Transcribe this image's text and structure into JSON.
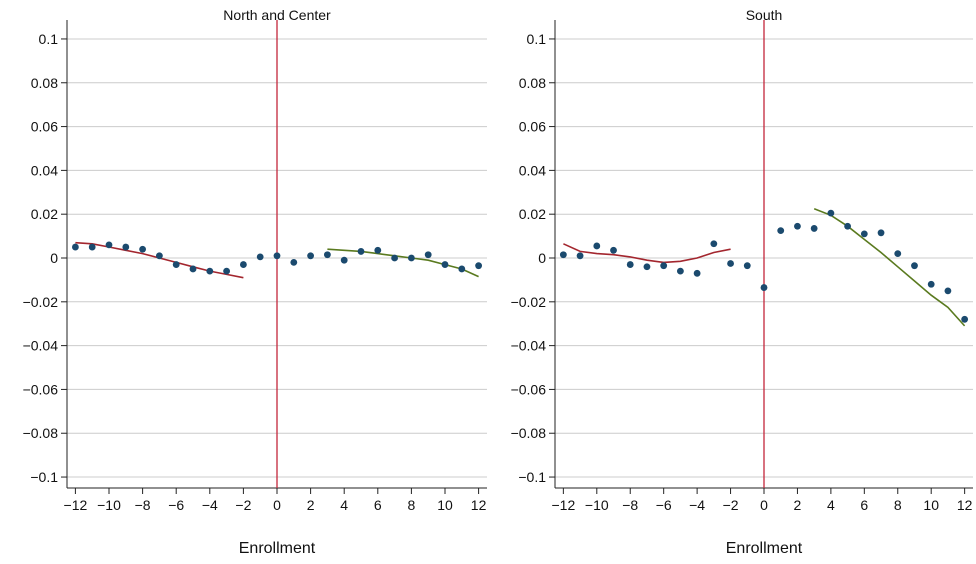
{
  "chart_data": [
    {
      "type": "scatter",
      "title": "North and Center",
      "xlabel": "Enrollment",
      "ylabel": "",
      "xlim": [
        -12.5,
        12.5
      ],
      "ylim": [
        -0.105,
        0.105
      ],
      "xticks": [
        -12,
        -10,
        -8,
        -6,
        -4,
        -2,
        0,
        2,
        4,
        6,
        8,
        10,
        12
      ],
      "xtick_labels": [
        "−12",
        "−10",
        "−8",
        "−6",
        "−4",
        "−2",
        "0",
        "2",
        "4",
        "6",
        "8",
        "10",
        "12"
      ],
      "yticks": [
        -0.1,
        -0.08,
        -0.06,
        -0.04,
        -0.02,
        0,
        0.02,
        0.04,
        0.06,
        0.08,
        0.1
      ],
      "ytick_labels": [
        "−0.1",
        "−0.08",
        "−0.06",
        "−0.04",
        "−0.02",
        "0",
        "0.02",
        "0.04",
        "0.06",
        "0.08",
        "0.1"
      ],
      "grid": "horizontal",
      "cutoff": 0,
      "points": {
        "x": [
          -12,
          -11,
          -10,
          -9,
          -8,
          -7,
          -6,
          -5,
          -4,
          -3,
          -2,
          -1,
          0,
          1,
          2,
          3,
          4,
          5,
          6,
          7,
          8,
          9,
          10,
          11,
          12
        ],
        "y": [
          0.005,
          0.005,
          0.006,
          0.005,
          0.004,
          0.001,
          -0.003,
          -0.005,
          -0.006,
          -0.006,
          -0.003,
          0.0005,
          0.001,
          -0.002,
          0.001,
          0.0015,
          -0.001,
          0.003,
          0.0035,
          0.0,
          0.0,
          0.0015,
          -0.003,
          -0.005,
          -0.0035
        ]
      },
      "fit_left": {
        "x": [
          -12,
          -11,
          -10,
          -9,
          -8,
          -7,
          -6,
          -5,
          -4,
          -3,
          -2
        ],
        "y": [
          0.007,
          0.0065,
          0.005,
          0.0035,
          0.002,
          0.0,
          -0.002,
          -0.004,
          -0.006,
          -0.0075,
          -0.009
        ]
      },
      "fit_right": {
        "x": [
          3,
          4,
          5,
          6,
          7,
          8,
          9,
          10,
          11,
          12
        ],
        "y": [
          0.004,
          0.0035,
          0.003,
          0.002,
          0.001,
          0.0,
          -0.001,
          -0.003,
          -0.005,
          -0.0085
        ]
      }
    },
    {
      "type": "scatter",
      "title": "South",
      "xlabel": "Enrollment",
      "ylabel": "",
      "xlim": [
        -12.5,
        12.5
      ],
      "ylim": [
        -0.105,
        0.105
      ],
      "xticks": [
        -12,
        -10,
        -8,
        -6,
        -4,
        -2,
        0,
        2,
        4,
        6,
        8,
        10,
        12
      ],
      "xtick_labels": [
        "−12",
        "−10",
        "−8",
        "−6",
        "−4",
        "−2",
        "0",
        "2",
        "4",
        "6",
        "8",
        "10",
        "12"
      ],
      "yticks": [
        -0.1,
        -0.08,
        -0.06,
        -0.04,
        -0.02,
        0,
        0.02,
        0.04,
        0.06,
        0.08,
        0.1
      ],
      "ytick_labels": [
        "−0.1",
        "−0.08",
        "−0.06",
        "−0.04",
        "−0.02",
        "0",
        "0.02",
        "0.04",
        "0.06",
        "0.08",
        "0.1"
      ],
      "grid": "horizontal",
      "cutoff": 0,
      "points": {
        "x": [
          -12,
          -11,
          -10,
          -9,
          -8,
          -7,
          -6,
          -5,
          -4,
          -3,
          -2,
          -1,
          0,
          1,
          2,
          3,
          4,
          5,
          6,
          7,
          8,
          9,
          10,
          11,
          12
        ],
        "y": [
          0.0015,
          0.001,
          0.0055,
          0.0035,
          -0.003,
          -0.004,
          -0.0035,
          -0.006,
          -0.007,
          0.0065,
          -0.0025,
          -0.0035,
          -0.0135,
          0.0125,
          0.0145,
          0.0135,
          0.0205,
          0.0145,
          0.011,
          0.0115,
          0.002,
          -0.0035,
          -0.012,
          -0.015,
          -0.028
        ]
      },
      "fit_left": {
        "x": [
          -12,
          -11,
          -10,
          -9,
          -8,
          -7,
          -6,
          -5,
          -4,
          -3,
          -2
        ],
        "y": [
          0.0065,
          0.003,
          0.002,
          0.0015,
          0.0005,
          -0.001,
          -0.002,
          -0.0015,
          0.0,
          0.0025,
          0.004
        ]
      },
      "fit_right": {
        "x": [
          3,
          4,
          5,
          6,
          7,
          8,
          9,
          10,
          11,
          12
        ],
        "y": [
          0.0225,
          0.0195,
          0.0145,
          0.0085,
          0.0025,
          -0.004,
          -0.0105,
          -0.017,
          -0.0225,
          -0.031
        ]
      }
    }
  ],
  "colors": {
    "points": "#1b4a6e",
    "fit_left": "#a3262e",
    "fit_right": "#5a7a1f",
    "cutoff_line": "#c4263b",
    "grid": "#cccccc",
    "axis": "#222222"
  }
}
